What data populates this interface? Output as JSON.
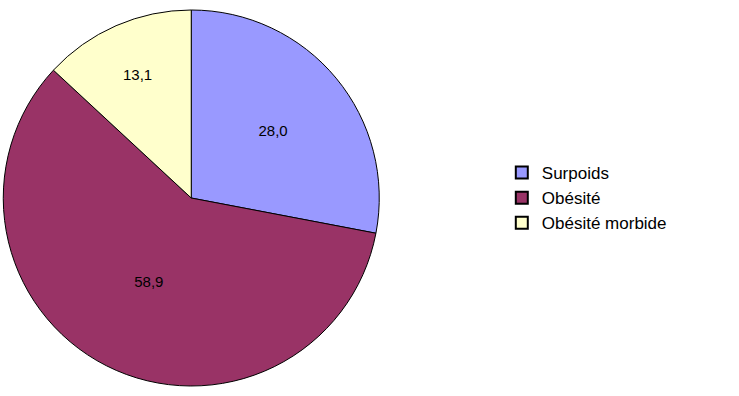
{
  "chart_data": {
    "type": "pie",
    "categories": [
      "Surpoids",
      "Obésité",
      "Obésité morbide"
    ],
    "values": [
      28.0,
      58.9,
      13.1
    ],
    "value_labels": [
      "28,0",
      "58,9",
      "13,1"
    ],
    "colors": [
      "#9999ff",
      "#993366",
      "#ffffcc"
    ],
    "data_labels": true,
    "legend": "right"
  }
}
